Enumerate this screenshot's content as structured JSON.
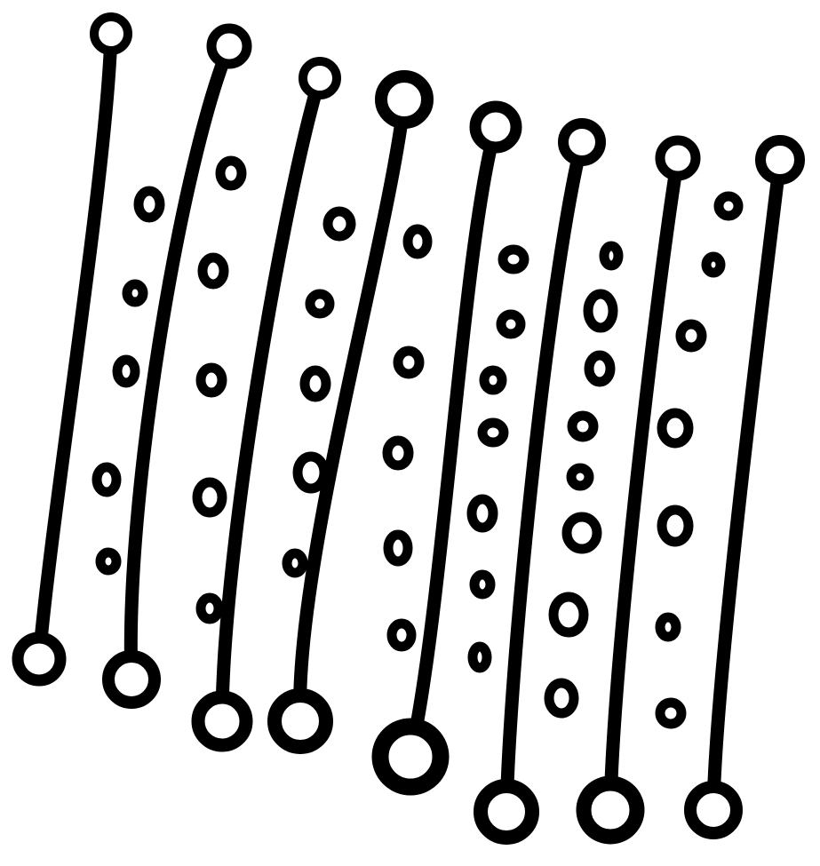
{
  "artwork": {
    "subject": "rods-and-rings-ink-drawing",
    "rod_count": 8,
    "ring_count": 43,
    "colors": {
      "ink": "#000000",
      "paper": "#ffffff"
    }
  }
}
